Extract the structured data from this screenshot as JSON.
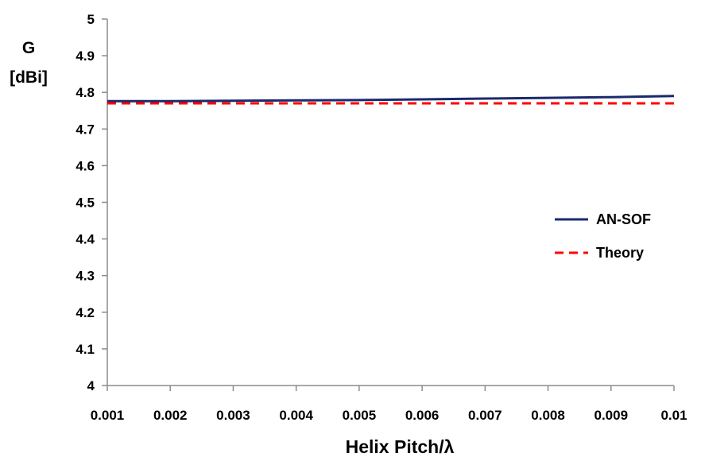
{
  "chart_data": {
    "type": "line",
    "title": "",
    "xlabel": "Helix Pitch/λ",
    "ylabel_lines": [
      "G",
      "[dBi]"
    ],
    "x": [
      0.001,
      0.002,
      0.003,
      0.004,
      0.005,
      0.006,
      0.007,
      0.008,
      0.009,
      0.01
    ],
    "xtick_labels": [
      "0.001",
      "0.002",
      "0.003",
      "0.004",
      "0.005",
      "0.006",
      "0.007",
      "0.008",
      "0.009",
      "0.01"
    ],
    "ytick_labels": [
      "4",
      "4.1",
      "4.2",
      "4.3",
      "4.4",
      "4.5",
      "4.6",
      "4.7",
      "4.8",
      "4.9",
      "5"
    ],
    "ylim": [
      4,
      5
    ],
    "grid": false,
    "legend_position": "right",
    "series": [
      {
        "name": "AN-SOF",
        "color": "#1a2a6c",
        "dash": "solid",
        "values": [
          4.776,
          4.776,
          4.777,
          4.778,
          4.779,
          4.781,
          4.783,
          4.785,
          4.787,
          4.79
        ]
      },
      {
        "name": "Theory",
        "color": "#ff0000",
        "dash": "dashed",
        "values": [
          4.77,
          4.77,
          4.77,
          4.77,
          4.77,
          4.77,
          4.77,
          4.77,
          4.77,
          4.77
        ]
      }
    ]
  }
}
